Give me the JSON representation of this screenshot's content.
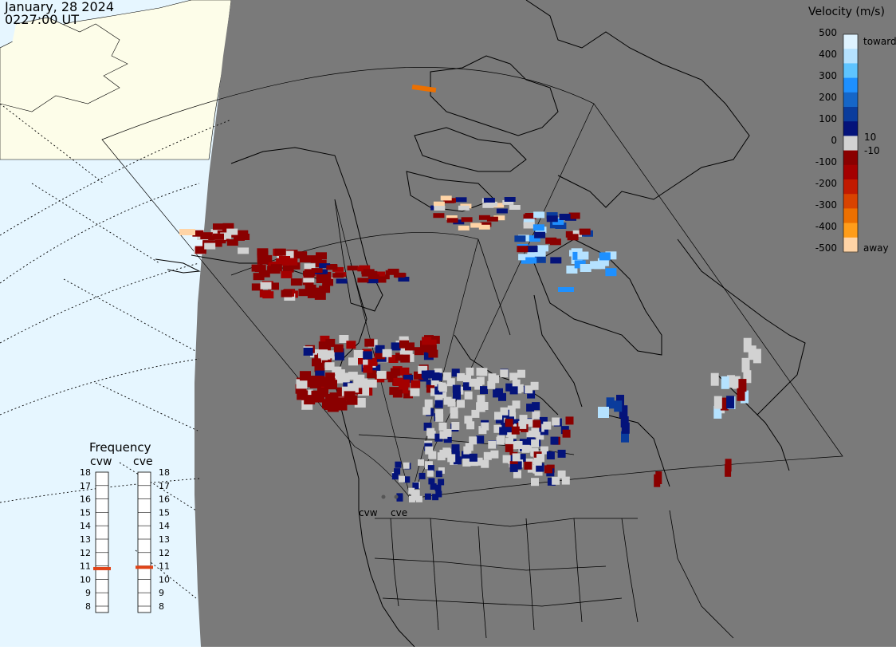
{
  "header": {
    "date": "January, 28 2024",
    "time": "0227:00 UT"
  },
  "colorbar": {
    "title": "Velocity (m/s)",
    "ticks": [
      "500",
      "400",
      "300",
      "200",
      "100",
      "10",
      "0",
      "-10",
      "-100",
      "-200",
      "-300",
      "-400",
      "-500"
    ],
    "toward_label": "toward",
    "away_label": "away",
    "colors_top_to_bottom": [
      "#dff3ff",
      "#b5e2ff",
      "#5ec4ff",
      "#1e90ff",
      "#1566c8",
      "#0a3c9c",
      "#04137a",
      "#d2d2d2",
      "#8a0000",
      "#a40000",
      "#c21a00",
      "#d84300",
      "#ec7000",
      "#ff9d1a",
      "#ffd4a6"
    ]
  },
  "frequency": {
    "title": "Frequency",
    "radars": [
      "cvw",
      "cve"
    ],
    "scale": [
      "18",
      "17",
      "16",
      "15",
      "14",
      "13",
      "12",
      "11",
      "10",
      "9",
      "8"
    ],
    "selected_mhz": [
      10.8,
      10.9
    ]
  },
  "stations": [
    "cvw",
    "cve"
  ],
  "colors": {
    "ocean": "#e6f6ff",
    "land_outside": "#fdfde9",
    "fov_background": "#7a7a7a",
    "coast": "#000000",
    "ground_scatter": "#d2d2d2",
    "frequency_marker": "#e04418"
  }
}
